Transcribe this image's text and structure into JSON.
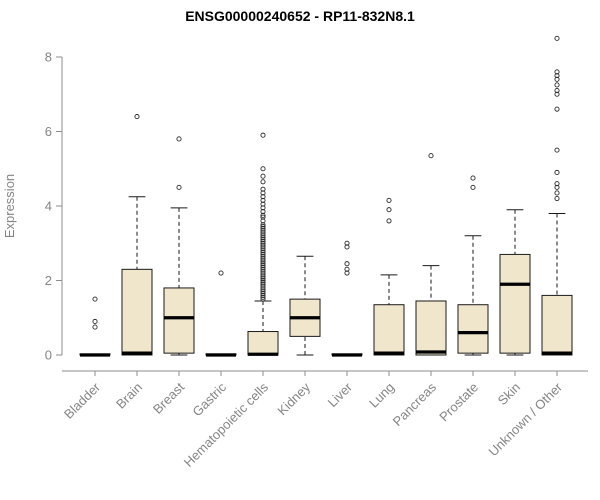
{
  "chart_data": {
    "type": "boxplot",
    "title": "ENSG00000240652 - RP11-832N8.1",
    "ylabel": "Expression",
    "ylim": [
      0,
      8.6
    ],
    "yticks": [
      0,
      2,
      4,
      6,
      8
    ],
    "grid": false,
    "legend": "none",
    "colors": {
      "box_fill": "#efe6cc",
      "box_stroke": "#1a1a1a",
      "median": "#000000",
      "axis": "#8c8c8c",
      "label": "#858585",
      "outlier": "#2b2b2b",
      "background": "#ffffff"
    },
    "categories": [
      "Bladder",
      "Brain",
      "Breast",
      "Gastric",
      "Hematopoietic cells",
      "Kidney",
      "Liver",
      "Lung",
      "Pancreas",
      "Prostate",
      "Skin",
      "Unknown / Other"
    ],
    "boxes": [
      {
        "category": "Bladder",
        "low": 0,
        "q1": 0,
        "median": 0,
        "q3": 0.03,
        "high": 0.03,
        "outliers": [
          0.75,
          0.9,
          1.5
        ]
      },
      {
        "category": "Brain",
        "low": 0,
        "q1": 0,
        "median": 0.05,
        "q3": 2.3,
        "high": 4.25,
        "outliers": [
          6.4
        ]
      },
      {
        "category": "Breast",
        "low": 0,
        "q1": 0.05,
        "median": 1.0,
        "q3": 1.8,
        "high": 3.95,
        "outliers": [
          4.5,
          5.8
        ]
      },
      {
        "category": "Gastric",
        "low": 0,
        "q1": 0,
        "median": 0,
        "q3": 0.03,
        "high": 0.03,
        "outliers": [
          2.2
        ]
      },
      {
        "category": "Hematopoietic cells",
        "low": 0,
        "q1": 0,
        "median": 0.02,
        "q3": 0.63,
        "high": 1.45,
        "outliers": [
          1.5,
          1.55,
          1.6,
          1.65,
          1.7,
          1.75,
          1.8,
          1.85,
          1.9,
          1.95,
          2.0,
          2.05,
          2.1,
          2.15,
          2.2,
          2.25,
          2.3,
          2.35,
          2.4,
          2.45,
          2.5,
          2.55,
          2.6,
          2.65,
          2.7,
          2.75,
          2.8,
          2.85,
          2.9,
          2.95,
          3.0,
          3.05,
          3.1,
          3.15,
          3.2,
          3.25,
          3.3,
          3.35,
          3.4,
          3.45,
          3.5,
          3.6,
          3.7,
          3.75,
          3.85,
          3.95,
          4.05,
          4.15,
          4.25,
          4.35,
          4.45,
          4.65,
          4.8,
          5.0,
          5.9
        ]
      },
      {
        "category": "Kidney",
        "low": 0,
        "q1": 0.5,
        "median": 1.0,
        "q3": 1.5,
        "high": 2.65,
        "outliers": []
      },
      {
        "category": "Liver",
        "low": 0,
        "q1": 0,
        "median": 0,
        "q3": 0.03,
        "high": 0.03,
        "outliers": [
          2.2,
          2.3,
          2.45,
          2.9,
          3.0
        ]
      },
      {
        "category": "Lung",
        "low": 0,
        "q1": 0,
        "median": 0.05,
        "q3": 1.35,
        "high": 2.15,
        "outliers": [
          3.6,
          3.9,
          4.15
        ]
      },
      {
        "category": "Pancreas",
        "low": 0,
        "q1": 0,
        "median": 0.08,
        "q3": 1.45,
        "high": 2.4,
        "outliers": [
          5.35
        ]
      },
      {
        "category": "Prostate",
        "low": 0,
        "q1": 0.05,
        "median": 0.6,
        "q3": 1.35,
        "high": 3.2,
        "outliers": [
          4.5,
          4.75
        ]
      },
      {
        "category": "Skin",
        "low": 0,
        "q1": 0.05,
        "median": 1.9,
        "q3": 2.7,
        "high": 3.9,
        "outliers": []
      },
      {
        "category": "Unknown / Other",
        "low": 0,
        "q1": 0,
        "median": 0.05,
        "q3": 1.6,
        "high": 3.8,
        "outliers": [
          4.2,
          4.35,
          4.5,
          4.6,
          4.9,
          5.5,
          6.6,
          7.0,
          7.1,
          7.25,
          7.4,
          7.5,
          7.6,
          8.5
        ]
      }
    ]
  }
}
